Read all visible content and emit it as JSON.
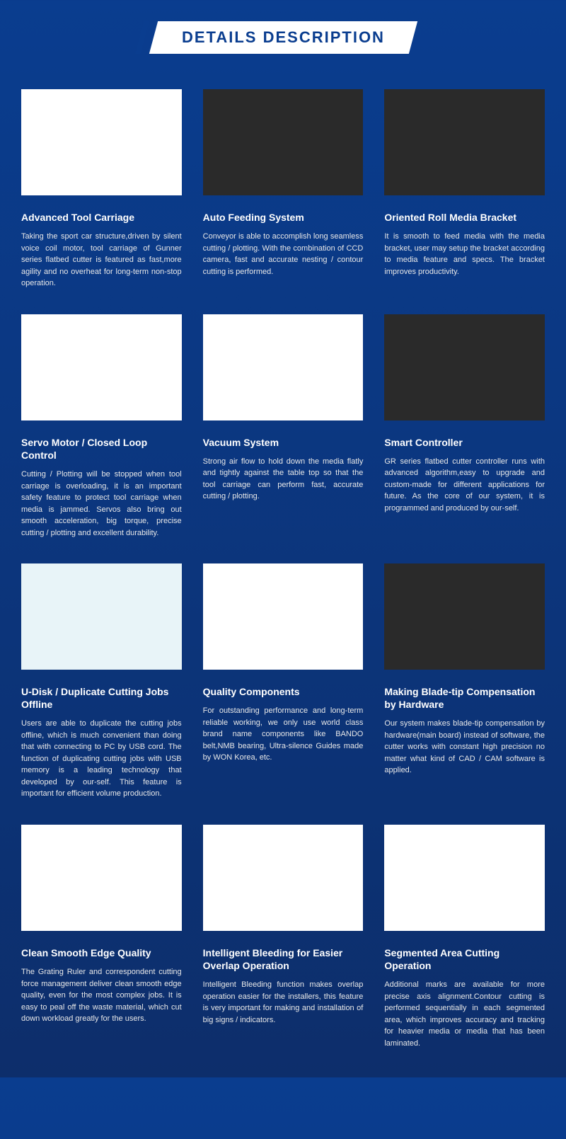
{
  "header": {
    "title": "DETAILS DESCRIPTION"
  },
  "cards": [
    {
      "title": "Advanced Tool Carriage",
      "desc": "Taking the sport car structure,driven by silent voice coil motor, tool carriage of Gunner series flatbed cutter is featured as fast,more agility and no overheat for long-term non-stop operation.",
      "img_class": "img-white"
    },
    {
      "title": "Auto Feeding System",
      "desc": "Conveyor is able to accomplish long seamless cutting / plotting. With the combination of CCD camera, fast and accurate nesting / contour cutting is performed.",
      "img_class": "img-dark"
    },
    {
      "title": "Oriented Roll Media Bracket",
      "desc": "It is smooth to feed media with the media bracket, user may setup the bracket according to media feature and specs. The bracket improves productivity.",
      "img_class": "img-dark"
    },
    {
      "title": "Servo Motor / Closed Loop Control",
      "desc": "Cutting / Plotting will be stopped when tool carriage is overloading, it is an important safety feature to protect tool carriage when media is jammed. Servos also bring out smooth acceleration, big torque, precise cutting / plotting and excellent durability.",
      "img_class": "img-white"
    },
    {
      "title": "Vacuum System",
      "desc": "Strong air flow to hold down the media flatly and tightly against the table top so that the tool carriage can perform fast, accurate cutting / plotting.",
      "img_class": "img-white"
    },
    {
      "title": "Smart Controller",
      "desc": "GR series flatbed cutter controller runs with advanced algorithm,easy to upgrade and custom-made for different applications for future. As the core of our system, it is programmed and produced by our-self.",
      "img_class": "img-dark"
    },
    {
      "title": "U-Disk / Duplicate Cutting Jobs Offline",
      "desc": "Users are able to duplicate the cutting jobs offline, which is much convenient than doing that with connecting to PC by USB cord. The function of duplicating cutting jobs with USB memory is a leading technology that developed by our-self. This feature is important for efficient volume production.",
      "img_class": "img-lightblue"
    },
    {
      "title": "Quality Components",
      "desc": "For outstanding performance and long-term reliable working, we only use world class brand name components like BANDO belt,NMB bearing, Ultra-silence Guides made by WON Korea, etc.",
      "img_class": "img-white"
    },
    {
      "title": "Making Blade-tip Compensation by Hardware",
      "desc": "Our system makes blade-tip compensation by hardware(main board) instead of software, the cutter works with constant high precision no matter what kind of CAD / CAM software is applied.",
      "img_class": "img-dark"
    },
    {
      "title": "Clean Smooth Edge Quality",
      "desc": "The Grating Ruler and correspondent cutting force management deliver clean smooth edge quality, even for the most complex jobs. It is easy to peal off the waste material, which cut down workload greatly for the users.",
      "img_class": "img-white"
    },
    {
      "title": "Intelligent Bleeding for Easier Overlap Operation",
      "desc": "Intelligent Bleeding function makes overlap operation easier for the installers, this feature is very important for making and installation of big signs / indicators.",
      "img_class": "img-white"
    },
    {
      "title": "Segmented Area Cutting Operation",
      "desc": "Additional marks are available for more precise axis alignment.Contour cutting is performed sequentially in each segmented area, which improves accuracy and tracking for heavier media or media that has been laminated.",
      "img_class": "img-white"
    }
  ]
}
